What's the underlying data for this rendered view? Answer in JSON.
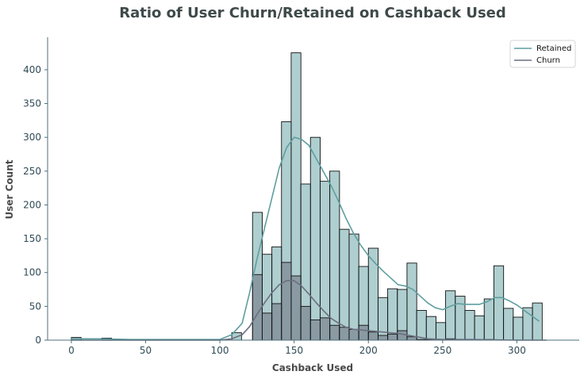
{
  "chart_data": {
    "type": "histogram",
    "title": "Ratio of User Churn/Retained on Cashback Used",
    "xlabel": "Cashback Used",
    "ylabel": "User Count",
    "xlim": [
      -16,
      342
    ],
    "ylim": [
      0,
      448
    ],
    "x_ticks": [
      0,
      50,
      100,
      150,
      200,
      250,
      300
    ],
    "y_ticks": [
      0,
      50,
      100,
      150,
      200,
      250,
      300,
      350,
      400
    ],
    "grid": false,
    "legend_position": "top-right",
    "bin_width": 6.56,
    "series": [
      {
        "name": "Retained",
        "color": "#5f9ea0",
        "kind": "histogram+kde",
        "bins": [
          {
            "x0": 0.0,
            "count": 4
          },
          {
            "x0": 20.5,
            "count": 3
          },
          {
            "x0": 108.0,
            "count": 11
          },
          {
            "x0": 122.0,
            "count": 189
          },
          {
            "x0": 128.5,
            "count": 127
          },
          {
            "x0": 135.0,
            "count": 138
          },
          {
            "x0": 141.5,
            "count": 323
          },
          {
            "x0": 148.0,
            "count": 425
          },
          {
            "x0": 154.5,
            "count": 231
          },
          {
            "x0": 161.0,
            "count": 300
          },
          {
            "x0": 167.5,
            "count": 235
          },
          {
            "x0": 174.0,
            "count": 250
          },
          {
            "x0": 180.5,
            "count": 164
          },
          {
            "x0": 187.0,
            "count": 157
          },
          {
            "x0": 193.5,
            "count": 109
          },
          {
            "x0": 200.0,
            "count": 136
          },
          {
            "x0": 206.5,
            "count": 63
          },
          {
            "x0": 213.0,
            "count": 76
          },
          {
            "x0": 219.5,
            "count": 75
          },
          {
            "x0": 226.0,
            "count": 114
          },
          {
            "x0": 232.5,
            "count": 44
          },
          {
            "x0": 239.0,
            "count": 35
          },
          {
            "x0": 245.5,
            "count": 26
          },
          {
            "x0": 252.0,
            "count": 73
          },
          {
            "x0": 258.5,
            "count": 65
          },
          {
            "x0": 265.0,
            "count": 44
          },
          {
            "x0": 271.5,
            "count": 36
          },
          {
            "x0": 278.0,
            "count": 61
          },
          {
            "x0": 284.5,
            "count": 110
          },
          {
            "x0": 291.0,
            "count": 47
          },
          {
            "x0": 297.5,
            "count": 34
          },
          {
            "x0": 304.0,
            "count": 48
          },
          {
            "x0": 310.5,
            "count": 55
          }
        ],
        "kde": [
          [
            0,
            2
          ],
          [
            20,
            2
          ],
          [
            40,
            1
          ],
          [
            60,
            1
          ],
          [
            80,
            1
          ],
          [
            100,
            1
          ],
          [
            108,
            8
          ],
          [
            115,
            25
          ],
          [
            120,
            70
          ],
          [
            125,
            120
          ],
          [
            130,
            165
          ],
          [
            135,
            210
          ],
          [
            140,
            255
          ],
          [
            145,
            285
          ],
          [
            150,
            300
          ],
          [
            155,
            297
          ],
          [
            160,
            288
          ],
          [
            165,
            268
          ],
          [
            170,
            248
          ],
          [
            175,
            228
          ],
          [
            180,
            205
          ],
          [
            185,
            180
          ],
          [
            190,
            158
          ],
          [
            195,
            140
          ],
          [
            200,
            125
          ],
          [
            205,
            113
          ],
          [
            210,
            102
          ],
          [
            215,
            92
          ],
          [
            220,
            82
          ],
          [
            225,
            80
          ],
          [
            230,
            75
          ],
          [
            235,
            65
          ],
          [
            240,
            55
          ],
          [
            245,
            48
          ],
          [
            250,
            45
          ],
          [
            255,
            50
          ],
          [
            260,
            54
          ],
          [
            265,
            53
          ],
          [
            270,
            53
          ],
          [
            275,
            53
          ],
          [
            280,
            57
          ],
          [
            285,
            63
          ],
          [
            290,
            63
          ],
          [
            295,
            58
          ],
          [
            300,
            52
          ],
          [
            305,
            44
          ],
          [
            310,
            36
          ],
          [
            315,
            28
          ]
        ]
      },
      {
        "name": "Churn",
        "color": "#6b6f80",
        "kind": "histogram+kde",
        "bins": [
          {
            "x0": 122.0,
            "count": 97
          },
          {
            "x0": 128.5,
            "count": 40
          },
          {
            "x0": 135.0,
            "count": 54
          },
          {
            "x0": 141.5,
            "count": 115
          },
          {
            "x0": 148.0,
            "count": 95
          },
          {
            "x0": 154.5,
            "count": 50
          },
          {
            "x0": 161.0,
            "count": 30
          },
          {
            "x0": 167.5,
            "count": 33
          },
          {
            "x0": 174.0,
            "count": 22
          },
          {
            "x0": 180.5,
            "count": 19
          },
          {
            "x0": 187.0,
            "count": 16
          },
          {
            "x0": 193.5,
            "count": 22
          },
          {
            "x0": 200.0,
            "count": 12
          },
          {
            "x0": 206.5,
            "count": 7
          },
          {
            "x0": 213.0,
            "count": 9
          },
          {
            "x0": 219.5,
            "count": 14
          },
          {
            "x0": 226.0,
            "count": 5
          },
          {
            "x0": 232.5,
            "count": 1
          },
          {
            "x0": 239.0,
            "count": 1
          },
          {
            "x0": 252.0,
            "count": 2
          },
          {
            "x0": 278.0,
            "count": 1
          }
        ],
        "kde": [
          [
            0,
            0
          ],
          [
            40,
            0
          ],
          [
            80,
            0
          ],
          [
            100,
            0
          ],
          [
            108,
            2
          ],
          [
            115,
            8
          ],
          [
            120,
            20
          ],
          [
            125,
            38
          ],
          [
            130,
            55
          ],
          [
            135,
            70
          ],
          [
            140,
            82
          ],
          [
            145,
            88
          ],
          [
            150,
            88
          ],
          [
            155,
            80
          ],
          [
            160,
            68
          ],
          [
            165,
            55
          ],
          [
            170,
            43
          ],
          [
            175,
            32
          ],
          [
            180,
            25
          ],
          [
            185,
            19
          ],
          [
            190,
            16
          ],
          [
            195,
            15
          ],
          [
            200,
            14
          ],
          [
            205,
            13
          ],
          [
            210,
            12
          ],
          [
            215,
            11
          ],
          [
            220,
            10
          ],
          [
            225,
            8
          ],
          [
            230,
            6
          ],
          [
            235,
            4
          ],
          [
            240,
            2
          ],
          [
            250,
            1
          ],
          [
            270,
            1
          ],
          [
            300,
            0
          ],
          [
            320,
            0
          ]
        ]
      }
    ]
  }
}
